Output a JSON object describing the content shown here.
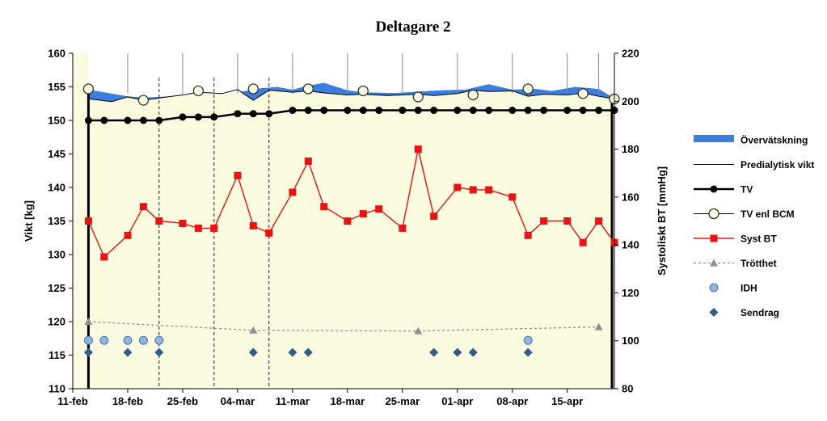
{
  "chart_data": {
    "type": "line",
    "title": "Deltagare 2",
    "ylabel": "Vikt [kg]",
    "y2label": "Systoliskt BT [mmHg]",
    "ylim": [
      110,
      160
    ],
    "y2lim": [
      80,
      220
    ],
    "y_ticks": [
      110,
      115,
      120,
      125,
      130,
      135,
      140,
      145,
      150,
      155,
      160
    ],
    "y2_ticks": [
      80,
      100,
      120,
      140,
      160,
      180,
      200,
      220
    ],
    "x_ticks": [
      "11-feb",
      "18-feb",
      "25-feb",
      "04-mar",
      "11-mar",
      "18-mar",
      "25-mar",
      "01-apr",
      "08-apr",
      "15-apr"
    ],
    "x_range": [
      0,
      69
    ],
    "plot_background": "#fbfbe0",
    "legend": {
      "position": "right",
      "items": [
        "Övervätskning",
        "Predialytisk vikt",
        "TV",
        "TV enl BCM",
        "Syst BT",
        "Trötthet",
        "IDH",
        "Sendrag"
      ]
    },
    "series": [
      {
        "name": "Övervätskning",
        "kind": "area",
        "color": "#3a7fe0",
        "x": [
          2,
          7,
          9,
          16,
          20,
          22,
          24,
          26,
          28,
          30,
          32,
          35,
          37,
          41,
          44,
          47,
          50,
          53,
          56,
          59,
          61,
          64,
          67,
          69
        ],
        "values": [
          154.6,
          153.6,
          153.4,
          153.8,
          154.0,
          154.4,
          154.8,
          155.0,
          154.6,
          155.2,
          155.6,
          154.5,
          154.2,
          154.1,
          154.3,
          154.5,
          154.6,
          155.4,
          154.6,
          154.7,
          154.4,
          155.0,
          154.7,
          153.3
        ]
      },
      {
        "name": "Predialytisk vikt",
        "kind": "line",
        "color": "#000000",
        "x": [
          2,
          5,
          7,
          9,
          12,
          14,
          16,
          19,
          21,
          23,
          25,
          28,
          30,
          32,
          35,
          37,
          40,
          42,
          44,
          46,
          49,
          51,
          53,
          56,
          58,
          60,
          63,
          65,
          67,
          69
        ],
        "values": [
          153.2,
          152.8,
          153.5,
          153.0,
          153.5,
          153.8,
          154.2,
          154.0,
          154.6,
          153.0,
          154.5,
          154.2,
          154.4,
          154.1,
          153.8,
          153.9,
          153.7,
          153.8,
          153.9,
          153.7,
          154.0,
          154.5,
          154.3,
          154.4,
          153.6,
          153.9,
          153.8,
          154.1,
          153.6,
          153.2
        ]
      },
      {
        "name": "TV",
        "kind": "line-marker",
        "color": "#000000",
        "marker": "circle-filled",
        "x": [
          2,
          4,
          7,
          9,
          11,
          14,
          16,
          18,
          21,
          23,
          25,
          28,
          30,
          32,
          35,
          37,
          39,
          42,
          44,
          46,
          49,
          51,
          53,
          56,
          58,
          60,
          63,
          65,
          67,
          69
        ],
        "values": [
          150,
          150,
          150,
          150,
          150,
          150.5,
          150.5,
          150.5,
          151,
          151,
          151,
          151.5,
          151.5,
          151.5,
          151.5,
          151.5,
          151.5,
          151.5,
          151.5,
          151.5,
          151.5,
          151.5,
          151.5,
          151.5,
          151.5,
          151.5,
          151.5,
          151.5,
          151.5,
          151.5
        ]
      },
      {
        "name": "TV enl BCM",
        "kind": "marker",
        "color": "#fbfbe0",
        "marker": "circle-open",
        "x": [
          2,
          9,
          16,
          23,
          30,
          37,
          44,
          51,
          58,
          65,
          69
        ],
        "values": [
          154.7,
          153.0,
          154.4,
          154.7,
          154.7,
          154.4,
          153.5,
          153.8,
          154.7,
          154.0,
          153.2
        ]
      },
      {
        "name": "Syst BT",
        "kind": "line-marker",
        "color": "#ee1111",
        "marker": "square",
        "axis": "y2",
        "x": [
          2,
          4,
          7,
          9,
          11,
          14,
          16,
          18,
          21,
          23,
          25,
          28,
          30,
          32,
          35,
          37,
          39,
          42,
          44,
          46,
          49,
          51,
          53,
          56,
          58,
          60,
          63,
          65,
          67,
          69
        ],
        "values": [
          150,
          135,
          144,
          156,
          150,
          149,
          147,
          147,
          169,
          148,
          145,
          162,
          175,
          156,
          150,
          153,
          155,
          147,
          180,
          152,
          164,
          163,
          163,
          160,
          144,
          150,
          150,
          141,
          150,
          141
        ]
      },
      {
        "name": "Trötthet",
        "kind": "dashed-line-marker",
        "color": "#909090",
        "marker": "triangle",
        "x": [
          2,
          23,
          44,
          67
        ],
        "values": [
          120,
          118.7,
          118.6,
          119.2
        ]
      },
      {
        "name": "IDH",
        "kind": "marker",
        "color": "#8fb4e0",
        "marker": "circle",
        "x": [
          2,
          4,
          7,
          9,
          11,
          58
        ],
        "values": [
          117.2,
          117.2,
          117.2,
          117.2,
          117.2,
          117.2
        ]
      },
      {
        "name": "Sendrag",
        "kind": "marker",
        "color": "#2e5e8e",
        "marker": "diamond",
        "x": [
          2,
          7,
          11,
          23,
          28,
          30,
          46,
          49,
          51,
          58
        ],
        "values": [
          115.4,
          115.4,
          115.4,
          115.4,
          115.4,
          115.4,
          115.4,
          115.4,
          115.4,
          115.4
        ]
      }
    ],
    "vertical_ticks_top": [
      7,
      14,
      21,
      28,
      35,
      42,
      49,
      56,
      63,
      67
    ],
    "dashed_verticals": [
      11,
      18,
      25
    ]
  }
}
